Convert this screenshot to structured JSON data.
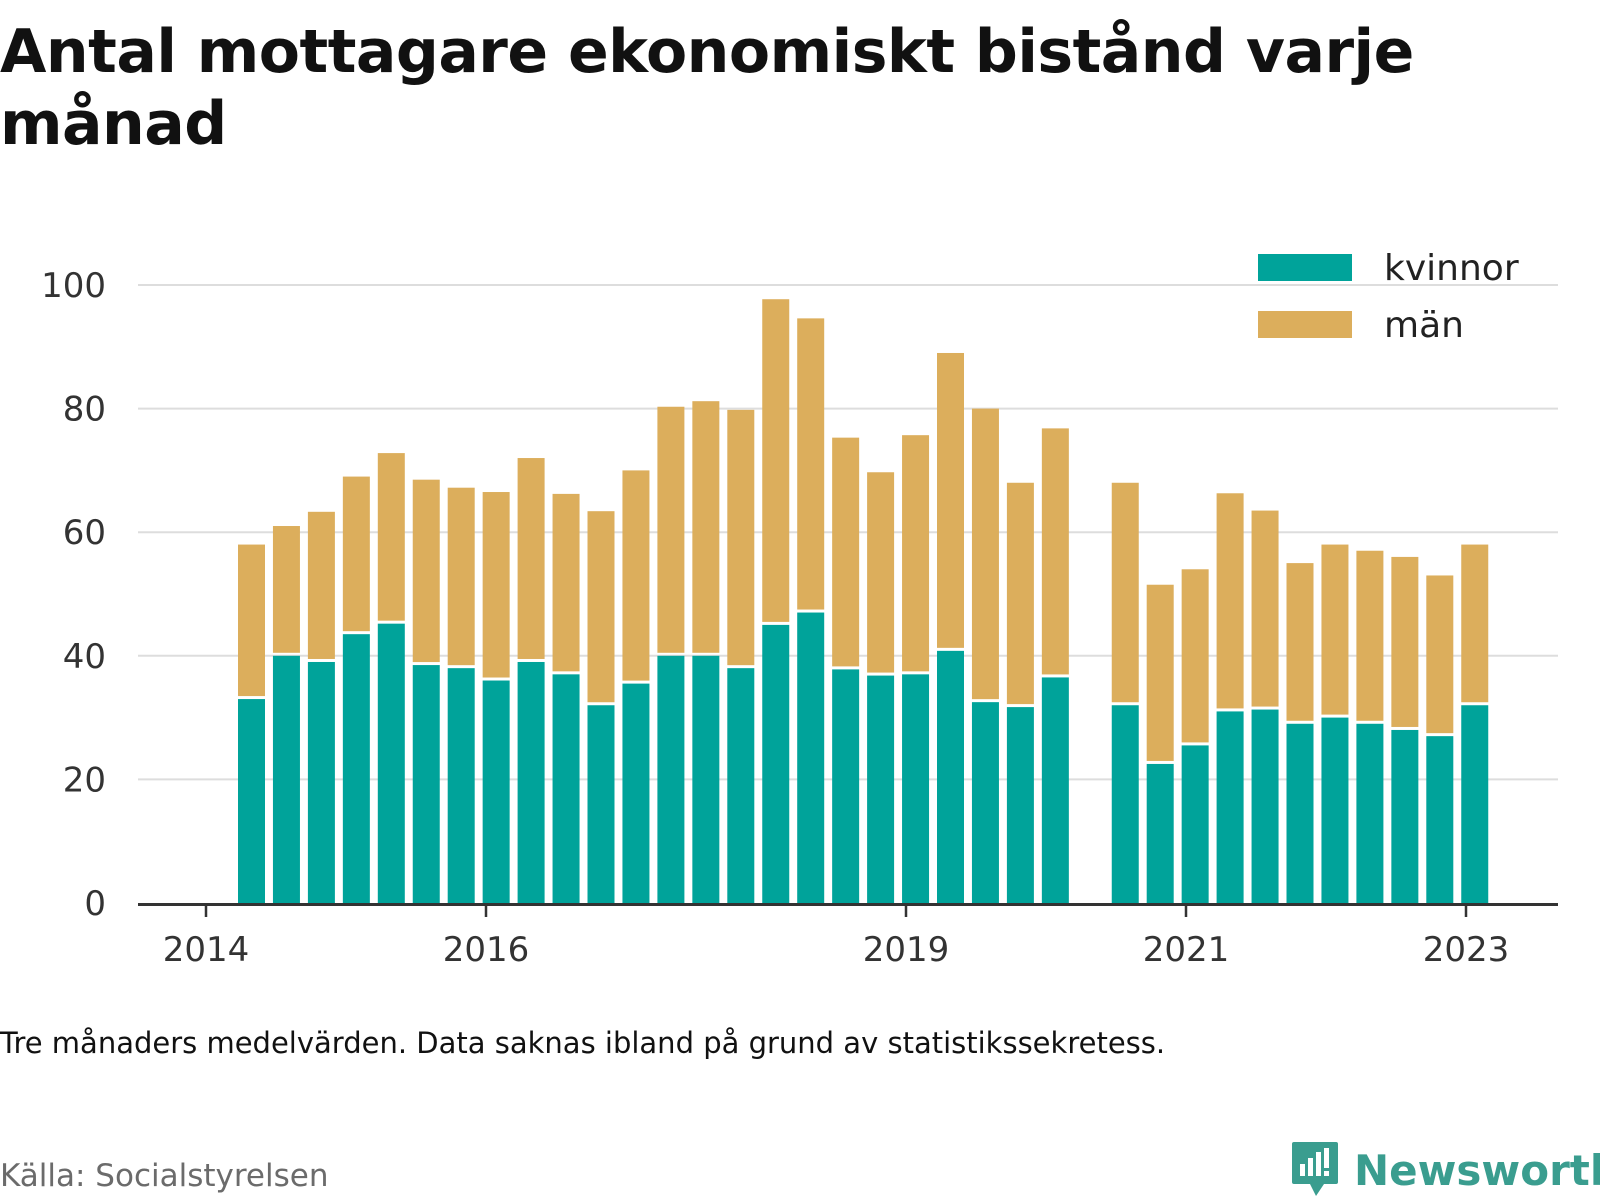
{
  "title": "Antal mottagare ekonomiskt bistånd varje månad",
  "note": "Tre månaders medelvärden. Data saknas ibland på grund av statistikssekretess.",
  "source": "Källa: Socialstyrelsen",
  "logo_text": "Newsworthy",
  "colors": {
    "kvinnor": "#00a39a",
    "man": "#dcae5c",
    "grid": "#dddddd",
    "axis": "#333333"
  },
  "chart_data": {
    "type": "bar",
    "stacked": true,
    "x_ticks": [
      "2014",
      "2016",
      "2019",
      "2021",
      "2023"
    ],
    "y_ticks": [
      "0",
      "20",
      "40",
      "60",
      "80",
      "100"
    ],
    "ylim": [
      0,
      100
    ],
    "grid": true,
    "legend_position": "top-right",
    "legend": [
      "kvinnor",
      "män"
    ],
    "series": [
      {
        "name": "kvinnor",
        "values": [
          33,
          40,
          39,
          43.5,
          45.2,
          38.5,
          38,
          36,
          39,
          37,
          32,
          35.5,
          40,
          40,
          38,
          45,
          47,
          37.8,
          36.8,
          37,
          40.8,
          32.5,
          31.7,
          36.5,
          null,
          32,
          22.5,
          25.5,
          31,
          31.3,
          29,
          30,
          29,
          28,
          27,
          32
        ]
      },
      {
        "name": "män",
        "values": [
          25,
          21,
          24.3,
          25.5,
          27.6,
          30,
          29.2,
          30.5,
          33,
          29.2,
          31.4,
          34.5,
          40.3,
          41.2,
          41.8,
          52.7,
          47.6,
          37.5,
          32.9,
          38.7,
          48.2,
          47.5,
          36.3,
          40.3,
          null,
          36,
          29,
          28.5,
          35.3,
          32.2,
          26,
          28,
          28,
          28,
          26,
          26
        ]
      }
    ]
  }
}
